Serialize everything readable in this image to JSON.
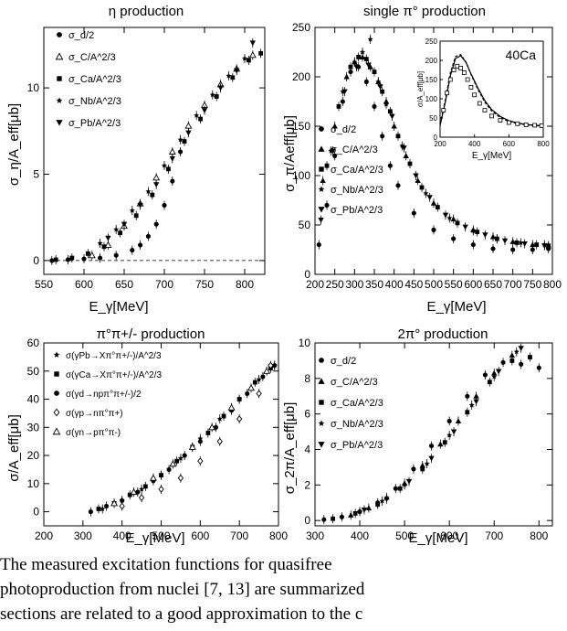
{
  "figure": {
    "panels": [
      {
        "id": "eta",
        "title": "η production",
        "xlabel": "E_γ[MeV]",
        "ylabel": "σ_η/A_eff[μb]"
      },
      {
        "id": "pi0",
        "title": "single π° production",
        "xlabel": "E_γ[MeV]",
        "ylabel": "σ_π/Aeff[μb]",
        "inset": {
          "label": "40Ca",
          "xlabel": "E_γ[MeV]",
          "ylabel": "σ/A_eff[μb]"
        }
      },
      {
        "id": "pipm",
        "title": "π°π+/- production",
        "xlabel": "E_γ[MeV]",
        "ylabel": "σ/A_eff[μb]"
      },
      {
        "id": "2pi0",
        "title": "2π° production",
        "xlabel": "E_γ[MeV]",
        "ylabel": "σ_2π/A_eff[μb]"
      }
    ]
  },
  "caption": {
    "lines": [
      "The measured excitation functions for quasifree",
      "photoproduction from nuclei [7, 13] are summarized",
      "sections are related to a good approximation to the c"
    ]
  },
  "chart_data": [
    {
      "type": "scatter",
      "title": "η production",
      "xlabel": "E_γ[MeV]",
      "ylabel": "σ_η/A_eff[μb]",
      "xlim": [
        550,
        825
      ],
      "ylim": [
        -0.8,
        13.5
      ],
      "xticks": [
        550,
        600,
        650,
        700,
        750,
        800
      ],
      "yticks": [
        0,
        5,
        10
      ],
      "reference_line": {
        "y": 0,
        "style": "dashed"
      },
      "legend": [
        "σ_d/2",
        "σ_C/A^2/3",
        "σ_Ca/A^2/3",
        "σ_Nb/A^2/3",
        "σ_Pb/A^2/3"
      ],
      "series": [
        {
          "name": "σ_d/2",
          "marker": "circle",
          "x": [
            560,
            580,
            600,
            620,
            640,
            660,
            670,
            680,
            690,
            700,
            710,
            720
          ],
          "y": [
            0.0,
            0.05,
            0.1,
            0.15,
            0.3,
            0.6,
            0.9,
            1.4,
            2.1,
            3.2,
            4.6,
            6.3
          ]
        },
        {
          "name": "σ_C/A^2/3",
          "marker": "triangle-open",
          "x": [
            610,
            630,
            650,
            670,
            690,
            710,
            730,
            750,
            770,
            790,
            810
          ],
          "y": [
            0.3,
            0.9,
            2.0,
            3.3,
            4.8,
            6.3,
            7.8,
            9.0,
            10.2,
            11.1,
            11.9
          ]
        },
        {
          "name": "σ_Ca/A^2/3",
          "marker": "square",
          "x": [
            565,
            585,
            605,
            625,
            645,
            665,
            685,
            705,
            725,
            745,
            765,
            785,
            805,
            820
          ],
          "y": [
            0.05,
            0.15,
            0.4,
            0.8,
            1.6,
            2.6,
            3.8,
            5.3,
            6.9,
            8.2,
            9.5,
            10.6,
            11.6,
            12.0
          ]
        },
        {
          "name": "σ_Nb/A^2/3",
          "marker": "star",
          "x": [
            620,
            640,
            660,
            680,
            700,
            720,
            740,
            760,
            780,
            800
          ],
          "y": [
            1.0,
            1.8,
            2.9,
            4.0,
            5.5,
            7.0,
            8.4,
            9.6,
            10.7,
            11.7
          ]
        },
        {
          "name": "σ_Pb/A^2/3",
          "marker": "triangle-down",
          "x": [
            630,
            650,
            670,
            690,
            710,
            730,
            750,
            770,
            790,
            810
          ],
          "y": [
            1.3,
            2.1,
            3.2,
            4.4,
            5.9,
            7.4,
            8.7,
            10.0,
            11.0,
            12.6
          ]
        }
      ]
    },
    {
      "type": "scatter",
      "title": "single π° production",
      "xlabel": "E_γ[MeV]",
      "ylabel": "σ_π/Aeff[μb]",
      "xlim": [
        200,
        800
      ],
      "ylim": [
        0,
        250
      ],
      "xticks": [
        200,
        250,
        300,
        350,
        400,
        450,
        500,
        550,
        600,
        650,
        700,
        750,
        800
      ],
      "yticks": [
        0,
        50,
        100,
        150,
        200,
        250
      ],
      "legend": [
        "σ_d/2",
        "σ_C/A^2/3",
        "σ_Ca/A^2/3",
        "σ_Nb/A^2/3",
        "σ_Pb/A^2/3"
      ],
      "series": [
        {
          "name": "σ_d/2",
          "marker": "circle",
          "x": [
            210,
            230,
            250,
            270,
            290,
            310,
            330,
            350,
            370,
            390,
            410,
            450,
            500,
            550,
            600,
            650,
            700,
            750,
            790
          ],
          "y": [
            30,
            70,
            120,
            175,
            205,
            210,
            195,
            170,
            140,
            110,
            90,
            62,
            45,
            36,
            30,
            26,
            25,
            25,
            26
          ]
        },
        {
          "name": "σ_C/A^2/3",
          "marker": "triangle",
          "x": [
            220,
            250,
            280,
            300,
            320,
            340,
            360,
            380,
            400,
            430,
            460,
            500,
            550,
            600,
            650,
            700,
            750,
            790
          ],
          "y": [
            95,
            150,
            200,
            215,
            220,
            210,
            195,
            175,
            150,
            120,
            95,
            72,
            56,
            45,
            38,
            33,
            30,
            29
          ]
        },
        {
          "name": "σ_Ca/A^2/3",
          "marker": "square",
          "x": [
            230,
            260,
            290,
            310,
            330,
            350,
            370,
            390,
            410,
            440,
            470,
            510,
            560,
            610,
            660,
            710,
            760,
            790
          ],
          "y": [
            110,
            170,
            210,
            220,
            218,
            205,
            185,
            165,
            140,
            112,
            88,
            68,
            52,
            43,
            36,
            32,
            30,
            29
          ]
        },
        {
          "name": "σ_Nb/A^2/3",
          "marker": "star",
          "x": [
            240,
            270,
            300,
            320,
            340,
            360,
            380,
            420,
            480,
            540,
            600,
            660,
            720,
            780
          ],
          "y": [
            125,
            185,
            215,
            225,
            238,
            195,
            172,
            130,
            82,
            57,
            44,
            36,
            32,
            30
          ]
        },
        {
          "name": "σ_Pb/A^2/3",
          "marker": "triangle-down",
          "x": [
            215,
            245,
            275,
            305,
            335,
            365,
            395,
            425,
            455,
            490,
            530,
            580,
            630,
            680,
            730,
            780
          ],
          "y": [
            55,
            125,
            185,
            210,
            212,
            190,
            160,
            128,
            100,
            78,
            60,
            48,
            40,
            34,
            31,
            29
          ]
        }
      ],
      "inset": {
        "label": "40Ca",
        "xlabel": "E_γ[MeV]",
        "ylabel": "σ/A_eff[μb]",
        "xlim": [
          200,
          800
        ],
        "ylim": [
          0,
          250
        ],
        "xticks": [
          200,
          400,
          600,
          800
        ],
        "yticks": [
          0,
          50,
          100,
          150,
          200,
          250
        ],
        "data_x": [
          220,
          240,
          260,
          280,
          300,
          320,
          340,
          360,
          380,
          400,
          430,
          460,
          500,
          550,
          600,
          650,
          700,
          750,
          790
        ],
        "data_y": [
          70,
          115,
          150,
          175,
          185,
          180,
          168,
          150,
          130,
          110,
          88,
          70,
          55,
          44,
          38,
          35,
          32,
          31,
          30
        ],
        "curves": [
          {
            "style": "solid",
            "x": [
              200,
              230,
              260,
              290,
              320,
              350,
              380,
              420,
              460,
              500,
              550,
              600,
              650,
              700,
              750,
              800
            ],
            "y": [
              30,
              90,
              160,
              205,
              212,
              195,
              165,
              128,
              95,
              72,
              54,
              43,
              37,
              33,
              31,
              30
            ]
          },
          {
            "style": "dashed",
            "x": [
              200,
              230,
              260,
              290,
              320,
              350,
              380,
              420,
              460,
              500,
              550,
              600,
              650,
              700,
              750,
              800
            ],
            "y": [
              35,
              95,
              168,
              210,
              215,
              196,
              163,
              124,
              91,
              68,
              51,
              41,
              35,
              32,
              30,
              29
            ]
          }
        ]
      }
    },
    {
      "type": "scatter",
      "title": "π°π+/- production",
      "xlabel": "E_γ[MeV]",
      "ylabel": "σ/A_eff[μb]",
      "xlim": [
        200,
        800
      ],
      "ylim": [
        -5,
        60
      ],
      "xticks": [
        200,
        300,
        400,
        500,
        600,
        700,
        800
      ],
      "yticks": [
        0,
        10,
        20,
        30,
        40,
        50,
        60
      ],
      "legend": [
        "σ(γPb→Xπ°π+/-)/A^2/3",
        "σ(γCa→Xπ°π+/-)/A^2/3",
        "σ(γd→npπ°π+/-)/2",
        "σ(γp→nπ°π+)",
        "σ(γn→pπ°π-)"
      ],
      "series": [
        {
          "name": "σ(γPb→Xπ°π+/-)/A^2/3",
          "marker": "star",
          "x": [
            350,
            400,
            450,
            500,
            550,
            600,
            650,
            700,
            750,
            790
          ],
          "y": [
            1,
            4,
            8,
            13,
            19,
            26,
            33,
            40,
            47,
            52
          ]
        },
        {
          "name": "σ(γCa→Xπ°π+/-)/A^2/3",
          "marker": "square",
          "x": [
            340,
            380,
            420,
            460,
            500,
            540,
            580,
            620,
            660,
            700,
            740,
            780
          ],
          "y": [
            1,
            3,
            6,
            9,
            13,
            18,
            23,
            28,
            34,
            40,
            46,
            51
          ]
        },
        {
          "name": "σ(γd→npπ°π+/-)/2",
          "marker": "circle",
          "x": [
            320,
            360,
            400,
            440,
            480,
            520,
            560,
            600,
            640,
            680,
            720,
            760,
            790
          ],
          "y": [
            0,
            2,
            4,
            7,
            11,
            15,
            20,
            25,
            30,
            36,
            42,
            48,
            52
          ]
        },
        {
          "name": "σ(γp→nπ°π+)",
          "marker": "diamond-open",
          "x": [
            400,
            450,
            500,
            550,
            600,
            650,
            700,
            750,
            780
          ],
          "y": [
            2,
            5,
            8,
            12,
            18,
            25,
            33,
            42,
            52
          ]
        },
        {
          "name": "σ(γn→pπ°π-)",
          "marker": "triangle-open",
          "x": [
            380,
            430,
            480,
            530,
            580,
            630,
            680,
            730,
            770
          ],
          "y": [
            3,
            7,
            12,
            17,
            23,
            30,
            37,
            44,
            50
          ]
        }
      ]
    },
    {
      "type": "scatter",
      "title": "2π° production",
      "xlabel": "E_γ[MeV]",
      "ylabel": "σ_2π/A_eff[μb]",
      "xlim": [
        300,
        830
      ],
      "ylim": [
        -0.3,
        10
      ],
      "xticks": [
        300,
        400,
        500,
        600,
        700,
        800
      ],
      "yticks": [
        0,
        2,
        4,
        6,
        8,
        10
      ],
      "legend": [
        "σ_d/2",
        "σ_C/A^2/3",
        "σ_Ca/A^2/3",
        "σ_Nb/A^2/3",
        "σ_Pb/A^2/3"
      ],
      "series": [
        {
          "name": "σ_d/2",
          "marker": "circle",
          "x": [
            320,
            360,
            400,
            440,
            480,
            520,
            560,
            600,
            640,
            680,
            720,
            760,
            800
          ],
          "y": [
            0.05,
            0.2,
            0.5,
            1.0,
            1.8,
            2.9,
            4.2,
            5.6,
            7.0,
            8.2,
            8.9,
            8.8,
            8.6
          ]
        },
        {
          "name": "σ_C/A^2/3",
          "marker": "triangle",
          "x": [
            380,
            420,
            460,
            500,
            540,
            580,
            620,
            660,
            700,
            740
          ],
          "y": [
            0.3,
            0.7,
            1.3,
            2.1,
            3.1,
            4.3,
            5.6,
            7.0,
            8.3,
            9.3
          ]
        },
        {
          "name": "σ_Ca/A^2/3",
          "marker": "square",
          "x": [
            340,
            390,
            440,
            490,
            540,
            590,
            640,
            690,
            740,
            780
          ],
          "y": [
            0.1,
            0.4,
            0.9,
            1.8,
            2.9,
            4.4,
            6.1,
            7.8,
            9.0,
            9.2
          ]
        },
        {
          "name": "σ_Nb/A^2/3",
          "marker": "star",
          "x": [
            400,
            450,
            500,
            550,
            600,
            650,
            700,
            750
          ],
          "y": [
            0.5,
            1.1,
            2.0,
            3.2,
            4.8,
            6.5,
            8.1,
            9.5
          ]
        },
        {
          "name": "σ_Pb/A^2/3",
          "marker": "triangle-down",
          "x": [
            410,
            460,
            510,
            560,
            610,
            660,
            710,
            760
          ],
          "y": [
            0.6,
            1.2,
            2.2,
            3.5,
            5.0,
            6.7,
            8.4,
            9.7
          ]
        }
      ]
    }
  ]
}
